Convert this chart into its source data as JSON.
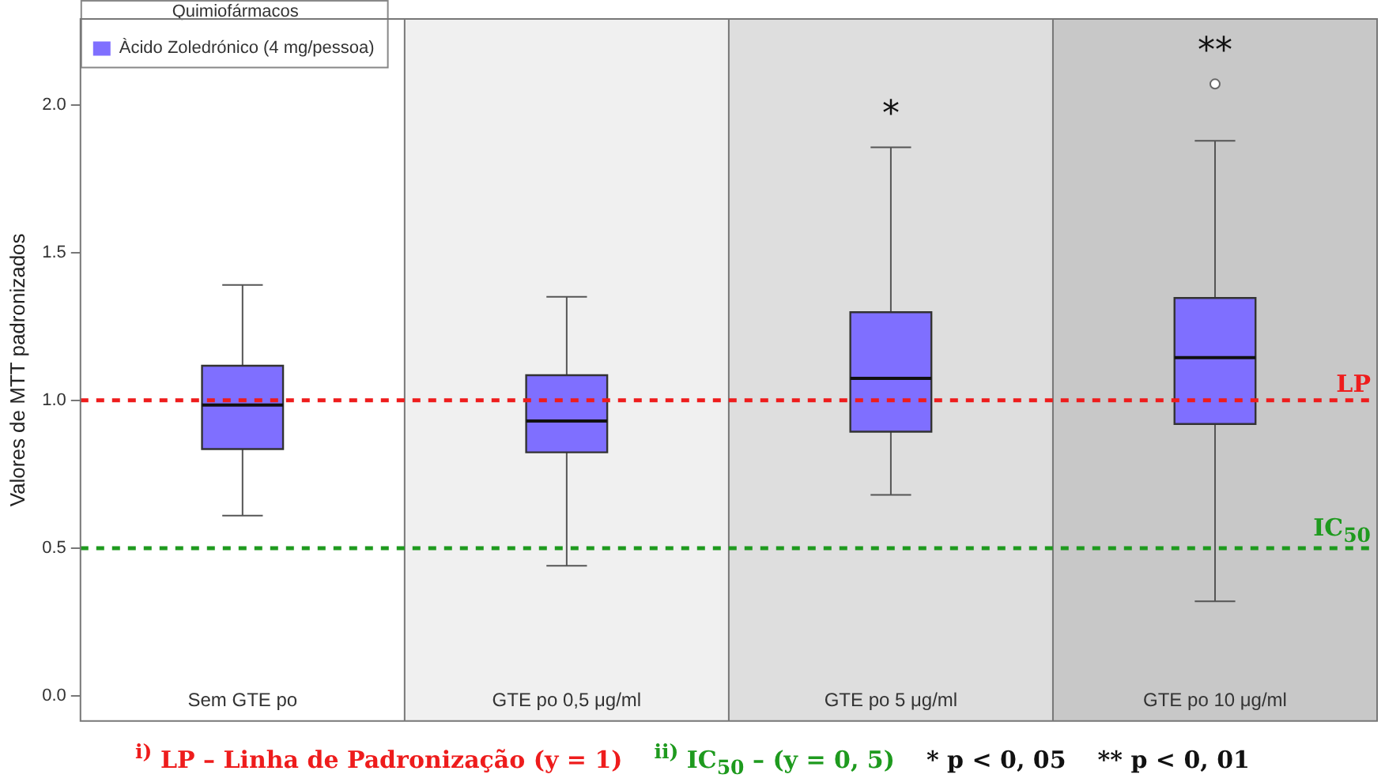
{
  "chart_data": {
    "type": "box",
    "ylabel": "Valores de MTT padronizados",
    "legend_title": "Quimiofármacos",
    "legend": "top left",
    "categories": [
      "Sem GTE po",
      "GTE po 0,5 μg/ml",
      "GTE po 5 μg/ml",
      "GTE po 10 μg/ml"
    ],
    "series": [
      {
        "name": "Àcido Zoledrónico (4 mg/pessoa)",
        "color": "#7f6fff",
        "boxes": [
          {
            "low": 0.61,
            "q1": 0.835,
            "median": 0.984,
            "q3": 1.117,
            "high": 1.39
          },
          {
            "low": 0.44,
            "q1": 0.824,
            "median": 0.93,
            "q3": 1.085,
            "high": 1.35
          },
          {
            "low": 0.68,
            "q1": 0.894,
            "median": 1.074,
            "q3": 1.298,
            "high": 1.856
          },
          {
            "low": 0.32,
            "q1": 0.92,
            "median": 1.144,
            "q3": 1.346,
            "high": 1.878,
            "outliers": [
              2.07
            ]
          }
        ]
      }
    ],
    "ylim": [
      -0.085,
      2.29
    ],
    "yticks": [
      {
        "value": 0,
        "label": "0.0"
      },
      {
        "value": 0.5,
        "label": "0.5"
      },
      {
        "value": 1,
        "label": "1.0"
      },
      {
        "value": 1.5,
        "label": "1.5"
      },
      {
        "value": 2,
        "label": "2.0"
      }
    ],
    "bands": [
      {
        "axis": "x",
        "from": "GTE po 0,5 μg/ml",
        "to": "GTE po 0,5 μg/ml",
        "color": "#f0f0f0"
      },
      {
        "axis": "x",
        "from": "GTE po 5 μg/ml",
        "to": "GTE po 5 μg/ml",
        "color": "#dedede"
      },
      {
        "axis": "x",
        "from": "GTE po 10 μg/ml",
        "to": "GTE po 10 μg/ml",
        "color": "#c8c8c8"
      }
    ],
    "ref_lines": [
      {
        "axis": "y",
        "value": 1,
        "label": "LP",
        "color": "#ee1c1c",
        "line_style": "dashed"
      },
      {
        "axis": "y",
        "value": 0.5,
        "label": "IC$_{50}$",
        "color": "#1e9a1e",
        "line_style": "dashed"
      }
    ],
    "annotations": [
      {
        "text": "*",
        "x": "GTE po 5 μg/ml",
        "y": 1.856
      },
      {
        "text": "**",
        "x": "GTE po 10 μg/ml",
        "y": 1.878
      },
      "$^{i)}$ LP – Linha de Padronização (y = 1)",
      "$^{ii)}$ IC$_{50}$ – (y = 0, 5)",
      "* p < 0, 05",
      "** p < 0, 01"
    ]
  }
}
